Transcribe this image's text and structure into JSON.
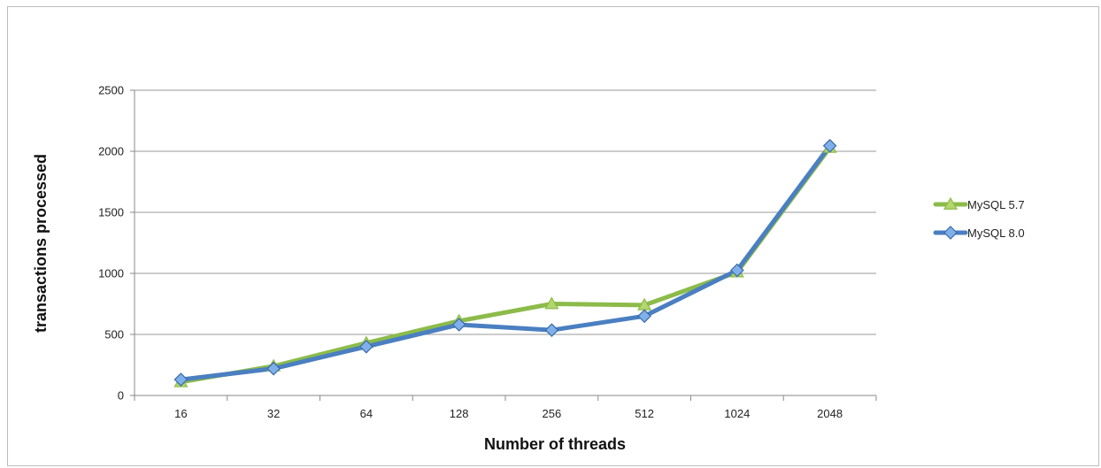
{
  "chart_data": {
    "type": "line",
    "title": "",
    "xlabel": "Number of threads",
    "ylabel": "transactions processed",
    "categories": [
      "16",
      "32",
      "64",
      "128",
      "256",
      "512",
      "1024",
      "2048"
    ],
    "ylim": [
      0,
      2500
    ],
    "yticks": [
      "0",
      "500",
      "1000",
      "1500",
      "2000",
      "2500"
    ],
    "grid": true,
    "legend_position": "right",
    "series": [
      {
        "name": "MySQL 5.7",
        "color": "#8cbb4a",
        "marker": "triangle",
        "values": [
          110,
          240,
          430,
          610,
          750,
          740,
          1010,
          2030
        ]
      },
      {
        "name": "MySQL 8.0",
        "color": "#4a7fc1",
        "marker": "diamond",
        "values": [
          130,
          220,
          400,
          580,
          535,
          650,
          1025,
          2045
        ]
      }
    ]
  }
}
